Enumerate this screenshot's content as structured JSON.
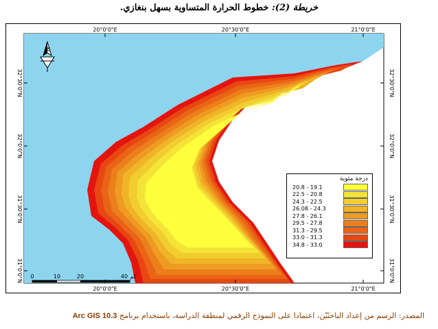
{
  "title": {
    "lead": "خريطة (2):",
    "text": "خطوط الحرارة المتساوية بسهل بنغازي."
  },
  "map": {
    "longitude_labels": [
      "20°0'0\"E",
      "20°30'0\"E",
      "21°0'0\"E"
    ],
    "latitude_labels": [
      "32°30'0\"N",
      "32°0'0\"N",
      "31°30'0\"N",
      "31°0'0\"N"
    ],
    "north_arrow_label": "N",
    "scale_bar": {
      "ticks": [
        "0",
        "10",
        "20",
        "40"
      ],
      "unit": "كم"
    },
    "colors": {
      "sea": "#8dd4ef",
      "land": "#ffffff"
    }
  },
  "legend": {
    "title": "درجة مئوية",
    "items": [
      {
        "label": "20.8 - 19.1",
        "color": "#ffff3c"
      },
      {
        "label": "22.5 - 20.8",
        "color": "#f4e438"
      },
      {
        "label": "24.3 - 22.5",
        "color": "#f2cd30"
      },
      {
        "label": "26.08 - 24.3",
        "color": "#f0b428"
      },
      {
        "label": "27.8 - 26.1",
        "color": "#ee9b22"
      },
      {
        "label": "29.5 - 27.8",
        "color": "#ec7f1c"
      },
      {
        "label": "31.3 - 29.5",
        "color": "#ea6416"
      },
      {
        "label": "33.0 - 31.3",
        "color": "#e84712"
      },
      {
        "label": "34.8 - 33.0",
        "color": "#e4150e"
      }
    ]
  },
  "source": {
    "text": "المصدر: الرسم من إعداد الباحثَيْن، اعتمادا على النموذج الرقمي لمنطقة الدراسة، باستخدام برنامج",
    "tool": "Arc GIS 10.3"
  }
}
